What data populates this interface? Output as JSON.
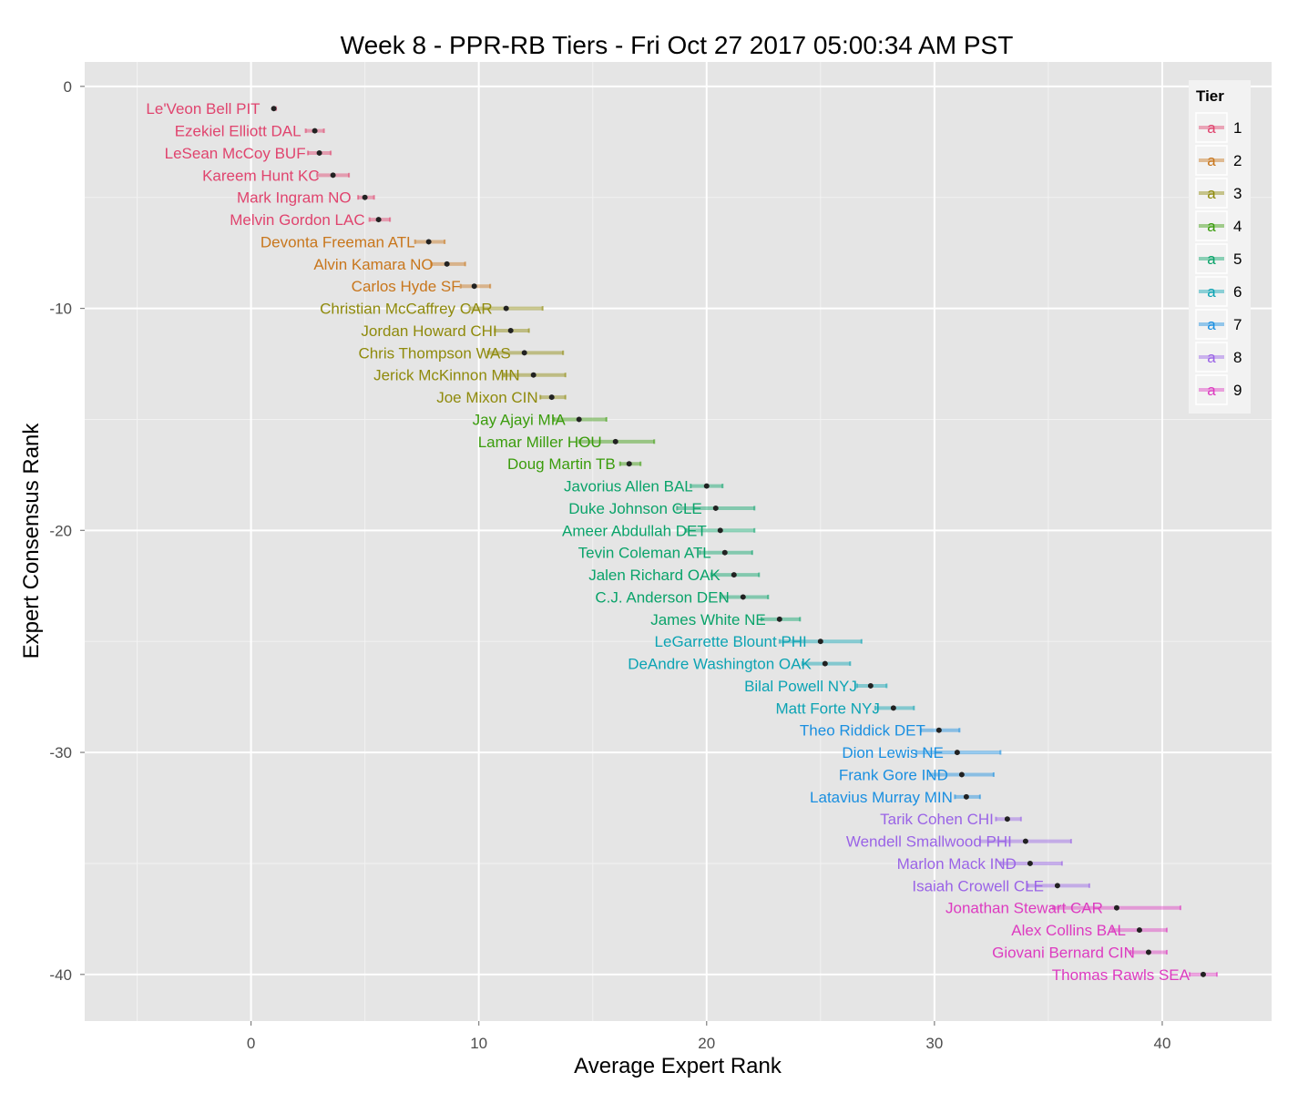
{
  "chart_data": {
    "type": "scatter",
    "title": "Week 8 - PPR-RB Tiers - Fri Oct 27 2017 05:00:34 AM PST",
    "xlabel": "Average Expert Rank",
    "ylabel": "Expert Consensus Rank",
    "xlim": [
      -7.3,
      44.8
    ],
    "ylim": [
      -42.1,
      1.1
    ],
    "x_ticks": [
      0,
      10,
      20,
      30,
      40
    ],
    "y_ticks": [
      0,
      -10,
      -20,
      -30,
      -40
    ],
    "grid": true,
    "legend": {
      "title": "Tier",
      "position": "right-top",
      "key_glyph": "a"
    },
    "tiers": [
      {
        "tier": "1",
        "color": "#e0446e"
      },
      {
        "tier": "2",
        "color": "#c8761c"
      },
      {
        "tier": "3",
        "color": "#8f8a0c"
      },
      {
        "tier": "4",
        "color": "#3a9c0c"
      },
      {
        "tier": "5",
        "color": "#0aa36a"
      },
      {
        "tier": "6",
        "color": "#0ca3b3"
      },
      {
        "tier": "7",
        "color": "#1a8fe0"
      },
      {
        "tier": "8",
        "color": "#9a63e6"
      },
      {
        "tier": "9",
        "color": "#dd3bc0"
      }
    ],
    "players": [
      {
        "name": "Le'Veon Bell PIT",
        "rank": -1,
        "avg": 1.0,
        "min": 1.0,
        "max": 1.1,
        "tier": 1
      },
      {
        "name": "Ezekiel Elliott DAL",
        "rank": -2,
        "avg": 2.8,
        "min": 2.4,
        "max": 3.2,
        "tier": 1
      },
      {
        "name": "LeSean McCoy BUF",
        "rank": -3,
        "avg": 3.0,
        "min": 2.5,
        "max": 3.5,
        "tier": 1
      },
      {
        "name": "Kareem Hunt KC",
        "rank": -4,
        "avg": 3.6,
        "min": 2.9,
        "max": 4.3,
        "tier": 1
      },
      {
        "name": "Mark Ingram NO",
        "rank": -5,
        "avg": 5.0,
        "min": 4.7,
        "max": 5.4,
        "tier": 1
      },
      {
        "name": "Melvin Gordon LAC",
        "rank": -6,
        "avg": 5.6,
        "min": 5.2,
        "max": 6.1,
        "tier": 1
      },
      {
        "name": "Devonta Freeman ATL",
        "rank": -7,
        "avg": 7.8,
        "min": 7.2,
        "max": 8.5,
        "tier": 2
      },
      {
        "name": "Alvin Kamara NO",
        "rank": -8,
        "avg": 8.6,
        "min": 7.9,
        "max": 9.4,
        "tier": 2
      },
      {
        "name": "Carlos Hyde SF",
        "rank": -9,
        "avg": 9.8,
        "min": 9.2,
        "max": 10.5,
        "tier": 2
      },
      {
        "name": "Christian McCaffrey CAR",
        "rank": -10,
        "avg": 11.2,
        "min": 9.6,
        "max": 12.8,
        "tier": 3
      },
      {
        "name": "Jordan Howard CHI",
        "rank": -11,
        "avg": 11.4,
        "min": 10.7,
        "max": 12.2,
        "tier": 3
      },
      {
        "name": "Chris Thompson WAS",
        "rank": -12,
        "avg": 12.0,
        "min": 10.4,
        "max": 13.7,
        "tier": 3
      },
      {
        "name": "Jerick McKinnon MIN",
        "rank": -13,
        "avg": 12.4,
        "min": 11.1,
        "max": 13.8,
        "tier": 3
      },
      {
        "name": "Joe Mixon CIN",
        "rank": -14,
        "avg": 13.2,
        "min": 12.7,
        "max": 13.8,
        "tier": 3
      },
      {
        "name": "Jay Ajayi MIA",
        "rank": -15,
        "avg": 14.4,
        "min": 13.3,
        "max": 15.6,
        "tier": 4
      },
      {
        "name": "Lamar Miller HOU",
        "rank": -16,
        "avg": 16.0,
        "min": 14.4,
        "max": 17.7,
        "tier": 4
      },
      {
        "name": "Doug Martin TB",
        "rank": -17,
        "avg": 16.6,
        "min": 16.2,
        "max": 17.1,
        "tier": 4
      },
      {
        "name": "Javorius Allen BAL",
        "rank": -18,
        "avg": 20.0,
        "min": 19.3,
        "max": 20.7,
        "tier": 5
      },
      {
        "name": "Duke Johnson CLE",
        "rank": -19,
        "avg": 20.4,
        "min": 18.7,
        "max": 22.1,
        "tier": 5
      },
      {
        "name": "Ameer Abdullah DET",
        "rank": -20,
        "avg": 20.6,
        "min": 19.1,
        "max": 22.1,
        "tier": 5
      },
      {
        "name": "Tevin Coleman ATL",
        "rank": -21,
        "avg": 20.8,
        "min": 19.7,
        "max": 22.0,
        "tier": 5
      },
      {
        "name": "Jalen Richard OAK",
        "rank": -22,
        "avg": 21.2,
        "min": 20.2,
        "max": 22.3,
        "tier": 5
      },
      {
        "name": "C.J. Anderson DEN",
        "rank": -23,
        "avg": 21.6,
        "min": 20.6,
        "max": 22.7,
        "tier": 5
      },
      {
        "name": "James White NE",
        "rank": -24,
        "avg": 23.2,
        "min": 22.4,
        "max": 24.1,
        "tier": 5
      },
      {
        "name": "LeGarrette Blount PHI",
        "rank": -25,
        "avg": 25.0,
        "min": 23.2,
        "max": 26.8,
        "tier": 6
      },
      {
        "name": "DeAndre Washington OAK",
        "rank": -26,
        "avg": 25.2,
        "min": 24.2,
        "max": 26.3,
        "tier": 6
      },
      {
        "name": "Bilal Powell NYJ",
        "rank": -27,
        "avg": 27.2,
        "min": 26.6,
        "max": 27.9,
        "tier": 6
      },
      {
        "name": "Matt Forte NYJ",
        "rank": -28,
        "avg": 28.2,
        "min": 27.4,
        "max": 29.1,
        "tier": 6
      },
      {
        "name": "Theo Riddick DET",
        "rank": -29,
        "avg": 30.2,
        "min": 29.4,
        "max": 31.1,
        "tier": 7
      },
      {
        "name": "Dion Lewis NE",
        "rank": -30,
        "avg": 31.0,
        "min": 29.2,
        "max": 32.9,
        "tier": 7
      },
      {
        "name": "Frank Gore IND",
        "rank": -31,
        "avg": 31.2,
        "min": 29.8,
        "max": 32.6,
        "tier": 7
      },
      {
        "name": "Latavius Murray MIN",
        "rank": -32,
        "avg": 31.4,
        "min": 30.9,
        "max": 32.0,
        "tier": 7
      },
      {
        "name": "Tarik Cohen CHI",
        "rank": -33,
        "avg": 33.2,
        "min": 32.7,
        "max": 33.8,
        "tier": 8
      },
      {
        "name": "Wendell Smallwood PHI",
        "rank": -34,
        "avg": 34.0,
        "min": 32.0,
        "max": 36.0,
        "tier": 8
      },
      {
        "name": "Marlon Mack IND",
        "rank": -35,
        "avg": 34.2,
        "min": 32.9,
        "max": 35.6,
        "tier": 8
      },
      {
        "name": "Isaiah Crowell CLE",
        "rank": -36,
        "avg": 35.4,
        "min": 34.1,
        "max": 36.8,
        "tier": 8
      },
      {
        "name": "Jonathan Stewart CAR",
        "rank": -37,
        "avg": 38.0,
        "min": 35.2,
        "max": 40.8,
        "tier": 9
      },
      {
        "name": "Alex Collins BAL",
        "rank": -38,
        "avg": 39.0,
        "min": 37.8,
        "max": 40.2,
        "tier": 9
      },
      {
        "name": "Giovani Bernard CIN",
        "rank": -39,
        "avg": 39.4,
        "min": 38.6,
        "max": 40.2,
        "tier": 9
      },
      {
        "name": "Thomas Rawls SEA",
        "rank": -40,
        "avg": 41.8,
        "min": 41.2,
        "max": 42.4,
        "tier": 9
      }
    ]
  }
}
